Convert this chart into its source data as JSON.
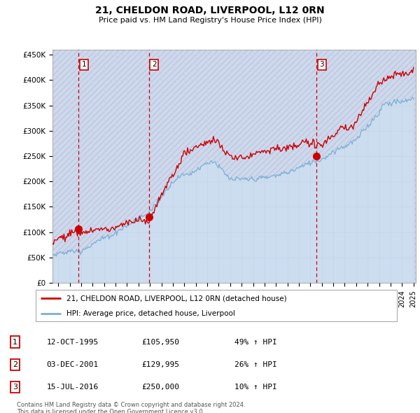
{
  "title": "21, CHELDON ROAD, LIVERPOOL, L12 0RN",
  "subtitle": "Price paid vs. HM Land Registry's House Price Index (HPI)",
  "ylabel_ticks": [
    "£0",
    "£50K",
    "£100K",
    "£150K",
    "£200K",
    "£250K",
    "£300K",
    "£350K",
    "£400K",
    "£450K"
  ],
  "ytick_values": [
    0,
    50000,
    100000,
    150000,
    200000,
    250000,
    300000,
    350000,
    400000,
    450000
  ],
  "ylim": [
    0,
    460000
  ],
  "xlim_start": 1993.5,
  "xlim_end": 2025.2,
  "sales": [
    {
      "date": 1995.78,
      "price": 105950,
      "label": "1"
    },
    {
      "date": 2001.92,
      "price": 129995,
      "label": "2"
    },
    {
      "date": 2016.54,
      "price": 250000,
      "label": "3"
    }
  ],
  "vlines": [
    1995.78,
    2001.92,
    2016.54
  ],
  "sale_color": "#cc0000",
  "hpi_fill_color": "#ccddf0",
  "hpi_line_color": "#7bafd4",
  "legend_label_red": "21, CHELDON ROAD, LIVERPOOL, L12 0RN (detached house)",
  "legend_label_blue": "HPI: Average price, detached house, Liverpool",
  "table_entries": [
    {
      "num": "1",
      "date": "12-OCT-1995",
      "price": "£105,950",
      "pct": "49% ↑ HPI"
    },
    {
      "num": "2",
      "date": "03-DEC-2001",
      "price": "£129,995",
      "pct": "26% ↑ HPI"
    },
    {
      "num": "3",
      "date": "15-JUL-2016",
      "price": "£250,000",
      "pct": "10% ↑ HPI"
    }
  ],
  "footnote": "Contains HM Land Registry data © Crown copyright and database right 2024.\nThis data is licensed under the Open Government Licence v3.0.",
  "grid_color": "#c8d4e8",
  "plot_bg": "#e8eef8",
  "hatch_color": "#d0d8ec"
}
